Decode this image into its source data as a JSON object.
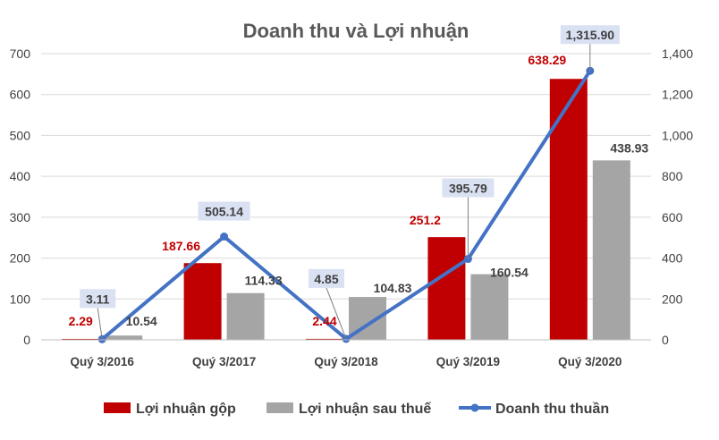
{
  "chart_data": {
    "type": "bar",
    "title": "Doanh thu và Lợi nhuận",
    "categories": [
      "Quý 3/2016",
      "Quý 3/2017",
      "Quý 3/2018",
      "Quý 3/2019",
      "Quý 3/2020"
    ],
    "series": [
      {
        "name": "Lợi nhuận gộp",
        "type": "bar",
        "axis": "left",
        "color": "#C00000",
        "values": [
          2.29,
          187.66,
          2.44,
          251.2,
          638.29
        ],
        "labels": [
          "2.29",
          "187.66",
          "2.44",
          "251.2",
          "638.29"
        ]
      },
      {
        "name": "Lợi nhuận sau thuế",
        "type": "bar",
        "axis": "left",
        "color": "#A5A5A5",
        "values": [
          10.54,
          114.33,
          104.83,
          160.54,
          438.93
        ],
        "labels": [
          "10.54",
          "114.33",
          "104.83",
          "160.54",
          "438.93"
        ]
      },
      {
        "name": "Doanh thu thuần",
        "type": "line",
        "axis": "right",
        "color": "#4472C4",
        "values": [
          3.11,
          505.14,
          4.85,
          395.79,
          1315.9
        ],
        "labels": [
          "3.11",
          "505.14",
          "4.85",
          "395.79",
          "1,315.90"
        ]
      }
    ],
    "left_axis": {
      "ylim": [
        0,
        700
      ],
      "ticks": [
        0,
        100,
        200,
        300,
        400,
        500,
        600,
        700
      ],
      "tick_labels": [
        "0",
        "100",
        "200",
        "300",
        "400",
        "500",
        "600",
        "700"
      ]
    },
    "right_axis": {
      "ylim": [
        0,
        1400
      ],
      "ticks": [
        0,
        200,
        400,
        600,
        800,
        1000,
        1200,
        1400
      ],
      "tick_labels": [
        "0",
        "200",
        "400",
        "600",
        "800",
        "1,000",
        "1,200",
        "1,400"
      ]
    },
    "grid": true,
    "legend_position": "bottom",
    "colors": {
      "gross_label": "#C00000",
      "net_label": "#404040",
      "revenue_label": "#404040",
      "revenue_label_bg": "#D9E1F2",
      "grid": "#D9D9D9"
    }
  }
}
